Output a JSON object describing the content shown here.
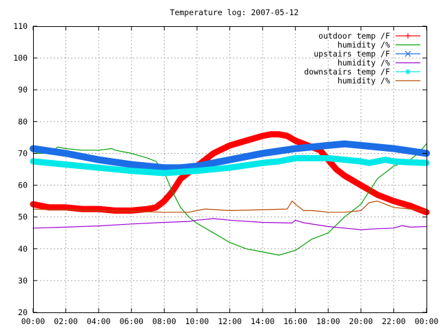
{
  "chart_data": {
    "type": "line",
    "title": "Temperature log: 2007-05-12",
    "xlabel": "",
    "ylabel": "",
    "xlim": [
      "00:00",
      "24:00"
    ],
    "ylim": [
      20,
      110
    ],
    "x_ticks": [
      "00:00",
      "02:00",
      "04:00",
      "06:00",
      "08:00",
      "10:00",
      "12:00",
      "14:00",
      "16:00",
      "18:00",
      "20:00",
      "22:00",
      "00:00"
    ],
    "y_ticks": [
      20,
      30,
      40,
      50,
      60,
      70,
      80,
      90,
      100,
      110
    ],
    "grid": true,
    "legend_position": "top-right",
    "x_unit": "hour of day",
    "series": [
      {
        "name": "outdoor temp /F",
        "color": "#ff0000",
        "marker": "plus",
        "x": [
          0,
          1,
          2,
          3,
          4,
          5,
          6,
          7,
          7.5,
          8,
          8.5,
          9,
          9.5,
          10,
          10.5,
          11,
          12,
          13,
          14,
          14.5,
          15,
          15.5,
          16,
          17,
          17.5,
          18,
          18.5,
          19,
          20,
          21,
          22,
          23,
          24
        ],
        "y": [
          54,
          53,
          53,
          52.5,
          52.5,
          52,
          52,
          52.5,
          53,
          55,
          58,
          62,
          64,
          66,
          68,
          70,
          72.5,
          74,
          75.5,
          76,
          76,
          75.5,
          74,
          72,
          71,
          68,
          65,
          63,
          60,
          57,
          55,
          53.5,
          51.5
        ]
      },
      {
        "name": "humidity /%",
        "color": "#00a000",
        "marker": "none",
        "x": [
          0,
          1,
          1.5,
          2,
          3,
          4,
          4.8,
          5,
          6,
          7,
          7.5,
          8,
          8.5,
          9,
          9.5,
          10,
          11,
          12,
          13,
          14,
          15,
          16,
          17,
          18,
          19,
          20,
          20.5,
          21,
          22,
          23,
          23.5,
          24
        ],
        "y": [
          70,
          70,
          72,
          71.5,
          71,
          71,
          71.5,
          71,
          70,
          68.5,
          67.5,
          64,
          58,
          53,
          50,
          48,
          45,
          42,
          40,
          39,
          38,
          39.5,
          43,
          45,
          50,
          54,
          58,
          62,
          66,
          68,
          70,
          73
        ]
      },
      {
        "name": "upstairs temp /F",
        "color": "#1c6ee6",
        "marker": "cross",
        "x": [
          0,
          2,
          4,
          6,
          8,
          9,
          10,
          12,
          14,
          16,
          18,
          19,
          20,
          22,
          24
        ],
        "y": [
          71.5,
          70,
          68,
          66.5,
          65.5,
          65.5,
          66,
          68,
          70,
          71.5,
          72.5,
          73,
          72.5,
          71.5,
          70
        ]
      },
      {
        "name": "humidity /%",
        "color": "#a000d8",
        "marker": "none",
        "x": [
          0,
          2,
          4,
          6,
          8,
          9.5,
          10,
          11,
          12,
          14,
          15.8,
          16,
          16.5,
          18,
          20,
          21,
          22,
          22.5,
          23,
          24
        ],
        "y": [
          46.5,
          46.8,
          47.2,
          47.8,
          48.3,
          48.6,
          49,
          49.5,
          49,
          48.3,
          48.1,
          49,
          48.2,
          47,
          46,
          46.3,
          46.5,
          47.3,
          46.8,
          47
        ]
      },
      {
        "name": "downstairs temp /F",
        "color": "#00e8e8",
        "marker": "star",
        "x": [
          0,
          2,
          4,
          6,
          8,
          10,
          12,
          14,
          15,
          16,
          17,
          18,
          19,
          20,
          20.5,
          21,
          21.5,
          22,
          23,
          24
        ],
        "y": [
          67.5,
          66.5,
          65.5,
          64.5,
          63.8,
          64.5,
          65.5,
          67,
          67.5,
          68.5,
          68.5,
          68.5,
          68,
          67.5,
          67,
          67.5,
          68,
          67.5,
          67.2,
          67
        ]
      },
      {
        "name": "humidity /%",
        "color": "#b84a00",
        "marker": "none",
        "x": [
          0,
          1,
          2,
          4,
          6,
          8,
          9.5,
          10,
          10.5,
          12,
          14,
          15.5,
          15.8,
          16,
          16.5,
          17,
          17.5,
          18,
          19,
          20,
          20.5,
          21,
          21.5,
          22,
          23,
          24
        ],
        "y": [
          52.5,
          52.3,
          52.3,
          52,
          51.8,
          51.5,
          51.5,
          52,
          52.5,
          52,
          52.3,
          52.5,
          55,
          54,
          52,
          52,
          51.8,
          51.5,
          51.5,
          52,
          54.5,
          55,
          54,
          53,
          52.5,
          52
        ]
      }
    ]
  }
}
